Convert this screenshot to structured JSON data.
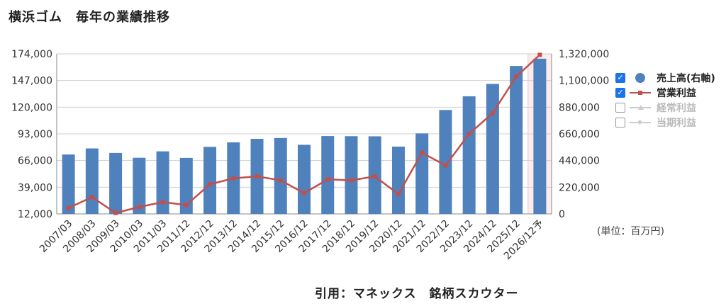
{
  "title": "横浜ゴム　毎年の業績推移",
  "unit_note": "(単位：百万円)",
  "source": "引用：マネックス　銘柄スカウター",
  "legend": [
    {
      "label": "売上高(右軸)",
      "checked": true,
      "icon": "circle",
      "color": "#4f81bd"
    },
    {
      "label": "営業利益",
      "checked": true,
      "icon": "line-square",
      "color": "#c0504d"
    },
    {
      "label": "経常利益",
      "checked": false,
      "icon": "line-triangle",
      "color": "#bbbbbb"
    },
    {
      "label": "当期利益",
      "checked": false,
      "icon": "line-diamond",
      "color": "#bbbbbb"
    }
  ],
  "chart_data": {
    "type": "bar",
    "categories": [
      "2007/03",
      "2008/03",
      "2009/03",
      "2010/03",
      "2011/03",
      "2011/12",
      "2012/12",
      "2013/12",
      "2014/12",
      "2015/12",
      "2016/12",
      "2017/12",
      "2018/12",
      "2019/12",
      "2020/12",
      "2021/12",
      "2022/12",
      "2023/12",
      "2024/12",
      "2025/12",
      "2026/12予"
    ],
    "left_axis": {
      "ticks": [
        "12,000",
        "39,000",
        "66,000",
        "93,000",
        "120,000",
        "147,000",
        "174,000"
      ],
      "ylim": [
        12000,
        174000
      ]
    },
    "right_axis": {
      "ticks": [
        "0",
        "220,000",
        "440,000",
        "660,000",
        "880,000",
        "1,100,000",
        "1,320,000"
      ],
      "ylim": [
        0,
        1320000
      ]
    },
    "series": [
      {
        "name": "売上高(右軸)",
        "type": "bar",
        "axis": "right",
        "color": "#4f81bd",
        "values": [
          490000,
          540000,
          503000,
          463000,
          516000,
          462000,
          553000,
          590000,
          619000,
          626000,
          570000,
          642000,
          641000,
          640000,
          555000,
          664000,
          857000,
          970000,
          1072000,
          1220000,
          1280000
        ]
      },
      {
        "name": "営業利益",
        "type": "line",
        "axis": "left",
        "color": "#c0504d",
        "values": [
          18000,
          29000,
          13000,
          19000,
          24000,
          21000,
          42000,
          48000,
          50000,
          46000,
          33000,
          47000,
          46000,
          50000,
          32000,
          74000,
          61000,
          93000,
          114000,
          151000,
          173000
        ]
      }
    ],
    "forecast_highlight": "2026/12予",
    "grid": true
  }
}
